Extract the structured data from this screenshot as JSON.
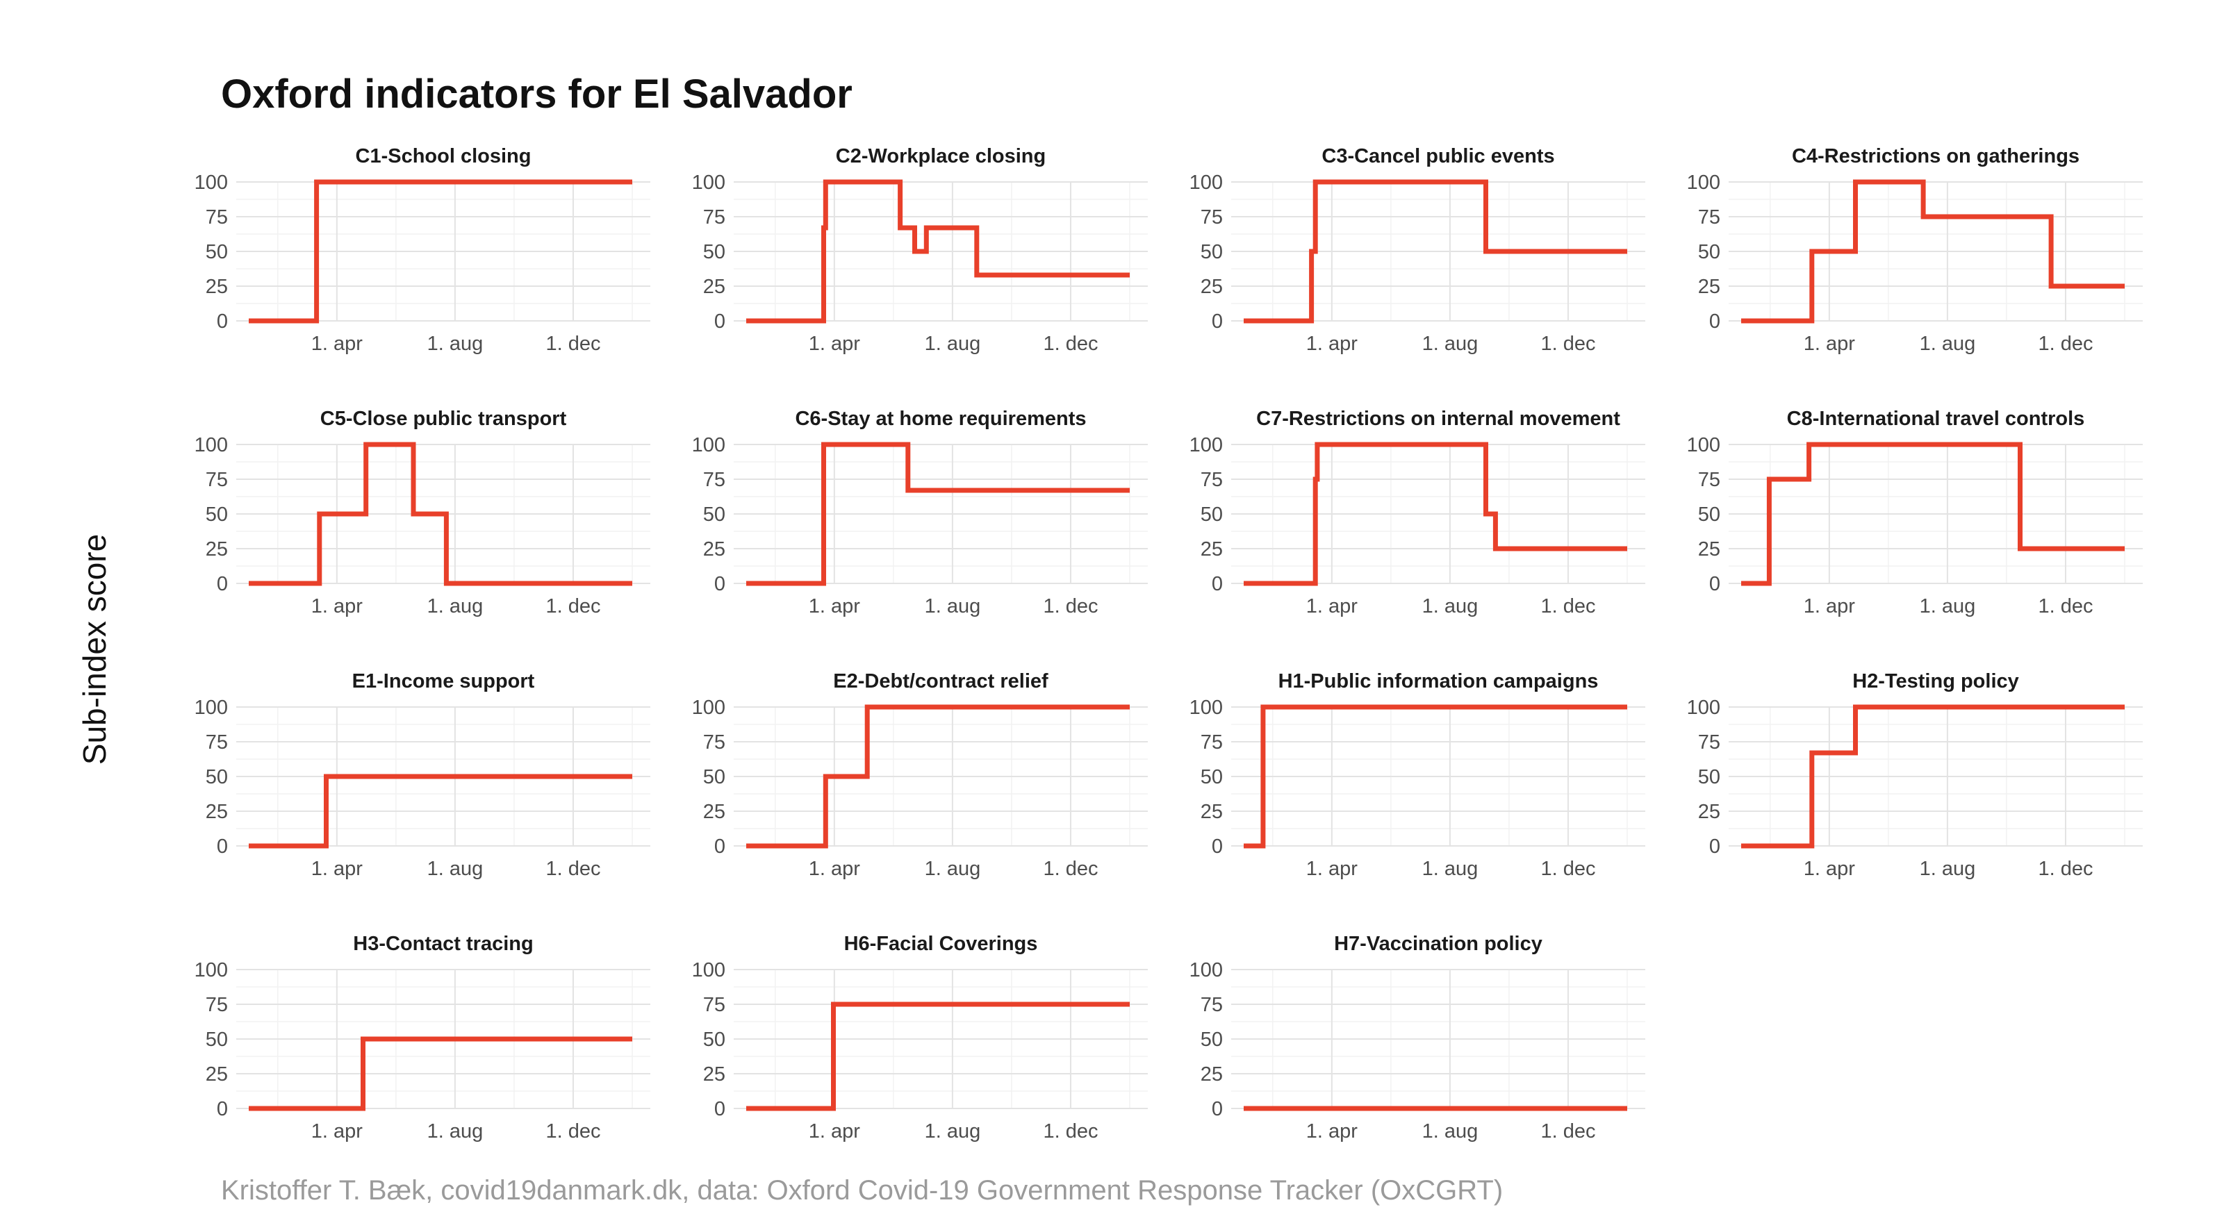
{
  "title": "Oxford indicators for El Salvador",
  "y_axis_label": "Sub-index score",
  "caption": "Kristoffer T. Bæk, covid19danmark.dk, data: Oxford Covid-19 Government Response Tracker (OxCGRT)",
  "colors": {
    "series": "#e8402a",
    "grid": "#e3e3e3",
    "text": "#1a1a1a",
    "caption": "#9a9a9a"
  },
  "chart_data": {
    "type": "line",
    "subtype": "step small multiples",
    "layout": "4 columns x 4 rows",
    "ylabel": "Sub-index score",
    "ylim": [
      0,
      100
    ],
    "yticks": [
      0,
      25,
      50,
      75,
      100
    ],
    "xlim": [
      "2020-01-01",
      "2021-01-31"
    ],
    "xticks": [
      {
        "date": "2020-04-01",
        "label": "1. apr"
      },
      {
        "date": "2020-08-01",
        "label": "1. aug"
      },
      {
        "date": "2020-12-01",
        "label": "1. dec"
      }
    ],
    "grid": true,
    "legend": "none",
    "panels": [
      {
        "title": "C1-School closing",
        "series": [
          {
            "x": [
              "2020-01-01",
              "2020-03-11",
              "2021-01-31"
            ],
            "y": [
              0,
              100,
              100
            ]
          }
        ]
      },
      {
        "title": "C2-Workplace closing",
        "series": [
          {
            "x": [
              "2020-01-01",
              "2020-03-21",
              "2020-03-23",
              "2020-06-08",
              "2020-06-23",
              "2020-07-05",
              "2020-08-26",
              "2021-01-31"
            ],
            "y": [
              0,
              67,
              100,
              67,
              50,
              67,
              33,
              33
            ]
          }
        ]
      },
      {
        "title": "C3-Cancel public events",
        "series": [
          {
            "x": [
              "2020-01-01",
              "2020-03-11",
              "2020-03-15",
              "2020-09-07",
              "2021-01-31"
            ],
            "y": [
              0,
              50,
              100,
              50,
              50
            ]
          }
        ]
      },
      {
        "title": "C4-Restrictions on gatherings",
        "series": [
          {
            "x": [
              "2020-01-01",
              "2020-03-14",
              "2020-04-28",
              "2020-07-07",
              "2020-11-16",
              "2021-01-31"
            ],
            "y": [
              0,
              50,
              100,
              75,
              25,
              25
            ]
          }
        ]
      },
      {
        "title": "C5-Close public transport",
        "series": [
          {
            "x": [
              "2020-01-01",
              "2020-03-14",
              "2020-05-01",
              "2020-06-19",
              "2020-07-23",
              "2021-01-31"
            ],
            "y": [
              0,
              50,
              100,
              50,
              0,
              0
            ]
          }
        ]
      },
      {
        "title": "C6-Stay at home requirements",
        "series": [
          {
            "x": [
              "2020-01-01",
              "2020-03-21",
              "2020-06-16",
              "2021-01-31"
            ],
            "y": [
              0,
              100,
              67,
              67
            ]
          }
        ]
      },
      {
        "title": "C7-Restrictions on internal movement",
        "series": [
          {
            "x": [
              "2020-01-01",
              "2020-03-15",
              "2020-03-17",
              "2020-09-07",
              "2020-09-17",
              "2021-01-31"
            ],
            "y": [
              0,
              75,
              100,
              50,
              25,
              25
            ]
          }
        ]
      },
      {
        "title": "C8-International travel controls",
        "series": [
          {
            "x": [
              "2020-01-01",
              "2020-01-30",
              "2020-03-11",
              "2020-10-15",
              "2021-01-31"
            ],
            "y": [
              0,
              75,
              100,
              25,
              25
            ]
          }
        ]
      },
      {
        "title": "E1-Income support",
        "series": [
          {
            "x": [
              "2020-01-01",
              "2020-03-21",
              "2021-01-31"
            ],
            "y": [
              0,
              50,
              50
            ]
          }
        ]
      },
      {
        "title": "E2-Debt/contract relief",
        "series": [
          {
            "x": [
              "2020-01-01",
              "2020-03-23",
              "2020-05-05",
              "2021-01-31"
            ],
            "y": [
              0,
              50,
              100,
              100
            ]
          }
        ]
      },
      {
        "title": "H1-Public information campaigns",
        "series": [
          {
            "x": [
              "2020-01-01",
              "2020-01-21",
              "2021-01-31"
            ],
            "y": [
              0,
              100,
              100
            ]
          }
        ]
      },
      {
        "title": "H2-Testing policy",
        "series": [
          {
            "x": [
              "2020-01-01",
              "2020-03-14",
              "2020-04-28",
              "2021-01-31"
            ],
            "y": [
              0,
              67,
              100,
              100
            ]
          }
        ]
      },
      {
        "title": "H3-Contact tracing",
        "series": [
          {
            "x": [
              "2020-01-01",
              "2020-04-28",
              "2021-01-31"
            ],
            "y": [
              0,
              50,
              50
            ]
          }
        ]
      },
      {
        "title": "H6-Facial Coverings",
        "series": [
          {
            "x": [
              "2020-01-01",
              "2020-03-31",
              "2021-01-31"
            ],
            "y": [
              0,
              75,
              75
            ]
          }
        ]
      },
      {
        "title": "H7-Vaccination policy",
        "series": [
          {
            "x": [
              "2020-01-01",
              "2021-01-31"
            ],
            "y": [
              0,
              0
            ]
          }
        ]
      }
    ]
  }
}
